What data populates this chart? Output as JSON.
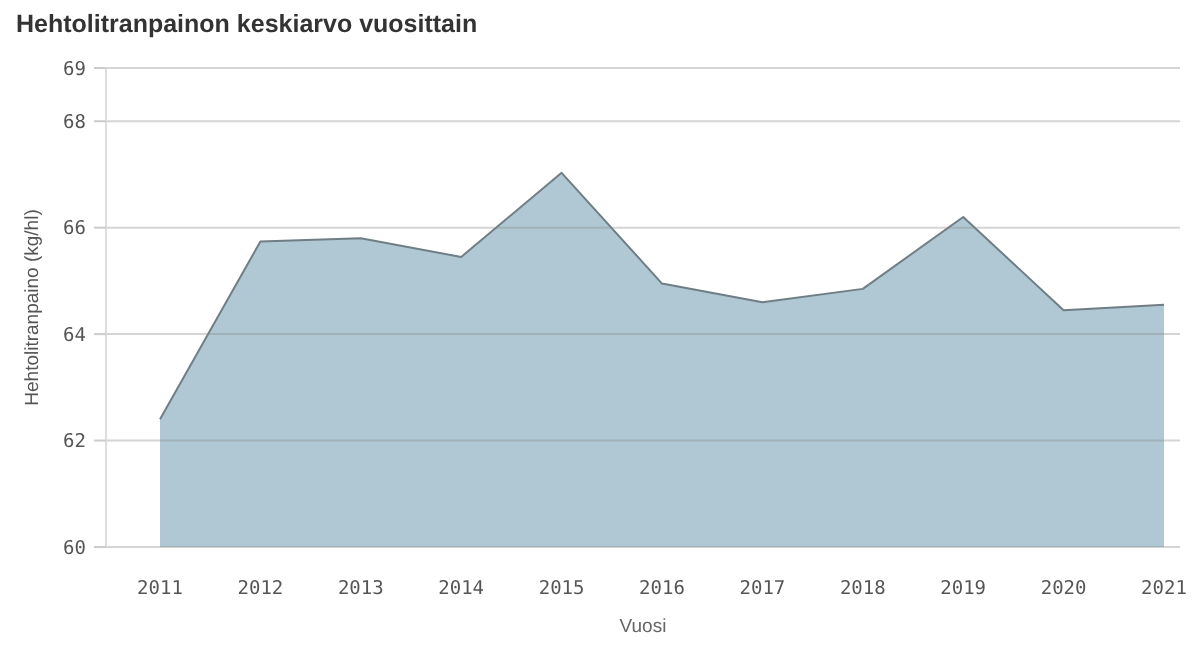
{
  "chart_data": {
    "type": "area",
    "title": "Hehtolitranpainon keskiarvo vuosittain",
    "xlabel": "Vuosi",
    "ylabel": "Hehtolitranpaino (kg/hl)",
    "categories": [
      "2011",
      "2012",
      "2013",
      "2014",
      "2015",
      "2016",
      "2017",
      "2018",
      "2019",
      "2020",
      "2021"
    ],
    "series": [
      {
        "color": "#b0c8d3",
        "values": [
          62.4,
          65.74,
          65.8,
          65.45,
          67.03,
          64.95,
          64.6,
          64.85,
          66.2,
          64.45,
          64.55
        ]
      }
    ],
    "ylim": [
      60,
      69
    ],
    "yticks": [
      60,
      62,
      64,
      66,
      68,
      69
    ],
    "grid": "y"
  }
}
